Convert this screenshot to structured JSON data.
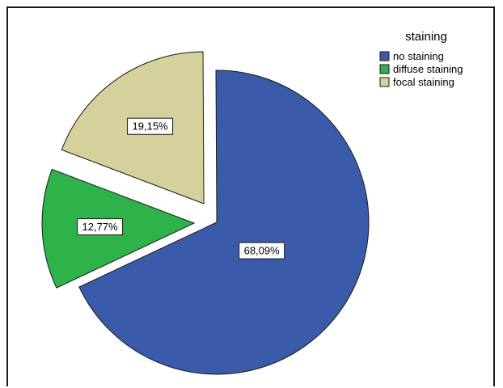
{
  "chart_data": {
    "type": "pie",
    "legend_title": "staining",
    "legend_position": "top-right",
    "slices": [
      {
        "name": "no staining",
        "value": 68.09,
        "label": "68,09%",
        "color": "#3a5ba9",
        "exploded": false
      },
      {
        "name": "diffuse staining",
        "value": 12.77,
        "label": "12,77%",
        "color": "#2db34a",
        "exploded": true
      },
      {
        "name": "focal staining",
        "value": 19.15,
        "label": "19,15%",
        "color": "#d4d19b",
        "exploded": true
      }
    ]
  }
}
